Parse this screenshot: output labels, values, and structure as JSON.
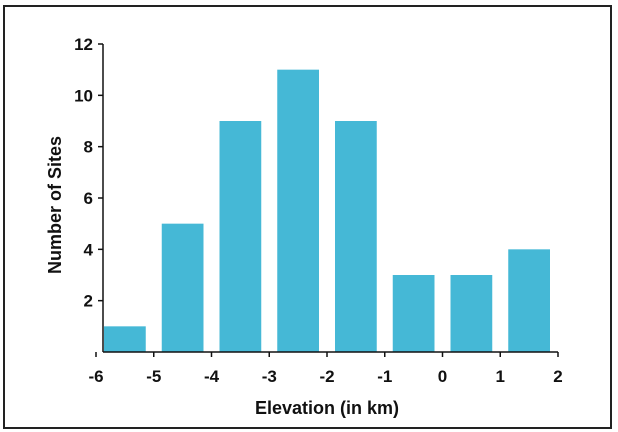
{
  "chart_data": {
    "type": "bar",
    "title": "",
    "xlabel": "Elevation (in km)",
    "ylabel": "Number of Sites",
    "bar_color": "#45b8d6",
    "xlim": [
      -6,
      2
    ],
    "ylim": [
      0,
      12
    ],
    "x_ticks": [
      "-6",
      "-5",
      "-4",
      "-3",
      "-2",
      "-1",
      "0",
      "1",
      "2"
    ],
    "y_ticks": [
      "2",
      "4",
      "6",
      "8",
      "10",
      "12"
    ],
    "bins": [
      {
        "from": -6,
        "to": -5,
        "value": 1
      },
      {
        "from": -5,
        "to": -4,
        "value": 5
      },
      {
        "from": -4,
        "to": -3,
        "value": 9
      },
      {
        "from": -3,
        "to": -2,
        "value": 11
      },
      {
        "from": -2,
        "to": -1,
        "value": 9
      },
      {
        "from": -1,
        "to": 0,
        "value": 3
      },
      {
        "from": 0,
        "to": 1,
        "value": 3
      },
      {
        "from": 1,
        "to": 2,
        "value": 4
      }
    ],
    "grid": false,
    "legend": "none"
  }
}
